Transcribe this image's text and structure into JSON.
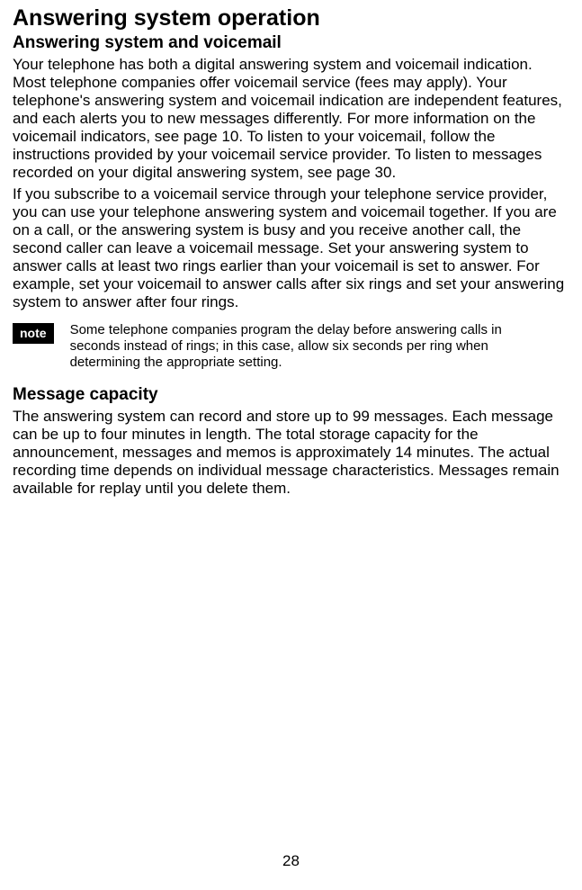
{
  "title": "Answering system operation",
  "section1_heading": "Answering system and voicemail",
  "section1_para1": "Your telephone has both a digital answering system and voicemail indication. Most telephone companies offer voicemail service (fees may apply). Your telephone's answering system and voicemail indication are independent features, and each alerts you to new messages differently. For more information on the voicemail indicators, see page 10. To listen to your voicemail, follow the instructions provided by your voicemail service provider. To listen to messages recorded on your digital answering system, see page 30.",
  "section1_para2": "If you subscribe to a voicemail service through your telephone service provider, you can use your telephone answering system and voicemail together. If you are on a call, or the answering system is busy and you receive another call, the second caller can leave a voicemail message. Set your answering system to answer calls at least two rings earlier than your voicemail is set to answer. For example, set your voicemail to answer calls after six rings and set your answering system to answer after four rings.",
  "note_label": "note",
  "note_text": "Some telephone companies program the delay before answering calls in seconds instead of rings; in this case, allow six seconds per ring when determining the appropriate setting.",
  "section2_heading": "Message capacity",
  "section2_para": "The answering system can record and store up to 99 messages. Each message can be up to four minutes in length. The total storage capacity for the announcement, messages and memos is approximately 14 minutes. The actual recording time depends on individual message characteristics. Messages remain available for replay until you delete them.",
  "page_number": "28"
}
